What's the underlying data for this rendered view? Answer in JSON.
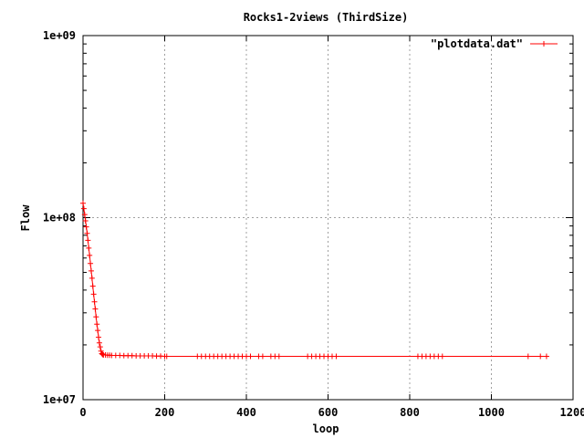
{
  "chart_data": {
    "type": "line",
    "title": "Rocks1-2views (ThirdSize)",
    "xlabel": "loop",
    "ylabel": "Flow",
    "xlim": [
      0,
      1200
    ],
    "ylim": [
      10000000,
      1000000000
    ],
    "yscale": "log",
    "grid": true,
    "legend_position": "top-right",
    "x_ticks": [
      0,
      200,
      400,
      600,
      800,
      1000,
      1200
    ],
    "x_tick_labels": [
      "0",
      "200",
      "400",
      "600",
      "800",
      "1000",
      "1200"
    ],
    "y_ticks": [
      10000000,
      100000000,
      1000000000
    ],
    "y_tick_labels": [
      "1e+07",
      "1e+08",
      "1e+09"
    ],
    "series": [
      {
        "name": "\"plotdata.dat\"",
        "color": "#ff0000",
        "marker": "plus",
        "x": [
          0,
          2,
          4,
          6,
          8,
          10,
          12,
          14,
          16,
          18,
          20,
          22,
          24,
          26,
          28,
          30,
          32,
          34,
          36,
          38,
          40,
          42,
          44,
          46,
          48,
          50,
          55,
          60,
          65,
          70,
          80,
          90,
          100,
          110,
          120,
          130,
          140,
          150,
          160,
          170,
          180,
          190,
          200,
          205,
          280,
          290,
          300,
          310,
          320,
          330,
          340,
          350,
          360,
          370,
          380,
          390,
          400,
          410,
          430,
          440,
          460,
          470,
          480,
          550,
          560,
          570,
          580,
          590,
          600,
          610,
          620,
          820,
          830,
          840,
          850,
          860,
          870,
          880,
          1090,
          1120,
          1135
        ],
        "y": [
          120000000,
          112000000,
          104000000,
          96000000,
          89000000,
          82000000,
          75000000,
          68000000,
          62000000,
          56000000,
          51000000,
          46500000,
          42000000,
          38000000,
          34500000,
          31500000,
          28500000,
          26000000,
          24000000,
          22000000,
          20500000,
          19500000,
          18500000,
          17900000,
          17700000,
          17600000,
          17600000,
          17550000,
          17550000,
          17500000,
          17500000,
          17500000,
          17450000,
          17450000,
          17450000,
          17400000,
          17400000,
          17400000,
          17400000,
          17400000,
          17350000,
          17350000,
          17300000,
          17300000,
          17300000,
          17300000,
          17300000,
          17300000,
          17300000,
          17300000,
          17300000,
          17300000,
          17300000,
          17300000,
          17300000,
          17300000,
          17300000,
          17300000,
          17300000,
          17300000,
          17300000,
          17300000,
          17300000,
          17300000,
          17300000,
          17300000,
          17300000,
          17300000,
          17300000,
          17300000,
          17300000,
          17300000,
          17300000,
          17300000,
          17300000,
          17300000,
          17300000,
          17300000,
          17300000,
          17300000,
          17300000
        ]
      }
    ]
  }
}
